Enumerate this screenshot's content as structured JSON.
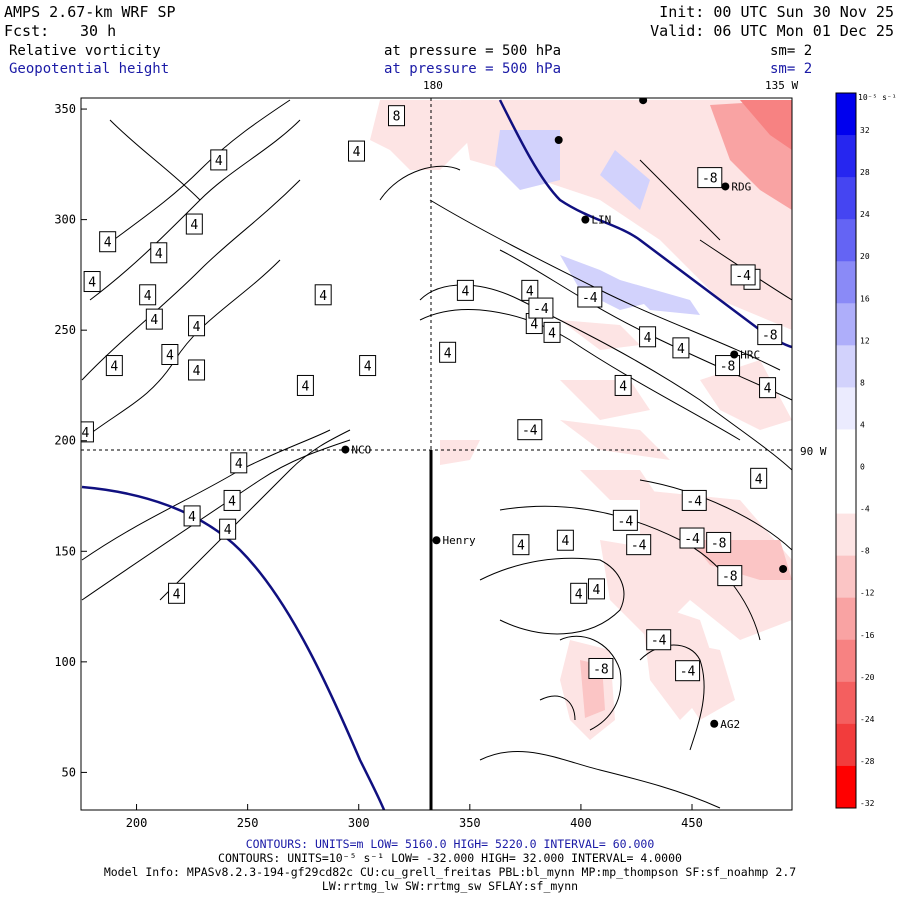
{
  "header": {
    "model": "AMPS 2.67-km WRF SP",
    "init": "Init: 00 UTC Sun 30 Nov 25",
    "fcst_label": "Fcst:",
    "fcst_value": "30 h",
    "valid": "Valid: 06 UTC Mon 01 Dec 25",
    "field1": "Relative vorticity",
    "field1_level": "at pressure =  500 hPa",
    "field1_sm": "sm= 2",
    "field2": "Geopotential height",
    "field2_level": "at pressure =  500 hPa",
    "field2_sm": "sm= 2"
  },
  "chart_data": {
    "type": "contour",
    "xlim": [
      175,
      495
    ],
    "ylim": [
      33,
      355
    ],
    "x_ticks": [
      200,
      250,
      300,
      350,
      400,
      450
    ],
    "y_ticks": [
      50,
      100,
      150,
      200,
      250,
      300,
      350
    ],
    "meridian_labels": {
      "top_180": "180",
      "top_135w": "135 W",
      "right_90w": "90 W"
    },
    "reference_lines": {
      "vertical_x": 334,
      "horizontal_y": 196
    },
    "stations": [
      {
        "name": "NCO",
        "x": 294,
        "y": 196
      },
      {
        "name": "Henry",
        "x": 335,
        "y": 155
      },
      {
        "name": "AG2",
        "x": 460,
        "y": 72
      },
      {
        "name": "HRC",
        "x": 469,
        "y": 239
      },
      {
        "name": "RDG",
        "x": 465,
        "y": 315
      },
      {
        "name": "LIN",
        "x": 402,
        "y": 300
      },
      {
        "name": "",
        "x": 390,
        "y": 336
      },
      {
        "name": "",
        "x": 428,
        "y": 354
      },
      {
        "name": "",
        "x": 491,
        "y": 142
      }
    ],
    "contour_labels": [
      {
        "text": "8",
        "x": 317,
        "y": 347
      },
      {
        "text": "4",
        "x": 299,
        "y": 331
      },
      {
        "text": "4",
        "x": 237,
        "y": 327
      },
      {
        "text": "4",
        "x": 226,
        "y": 298
      },
      {
        "text": "4",
        "x": 187,
        "y": 290
      },
      {
        "text": "4",
        "x": 210,
        "y": 285
      },
      {
        "text": "4",
        "x": 180,
        "y": 272
      },
      {
        "text": "4",
        "x": 205,
        "y": 266
      },
      {
        "text": "4",
        "x": 208,
        "y": 255
      },
      {
        "text": "4",
        "x": 190,
        "y": 234
      },
      {
        "text": "4",
        "x": 215,
        "y": 239
      },
      {
        "text": "4",
        "x": 227,
        "y": 252
      },
      {
        "text": "4",
        "x": 227,
        "y": 232
      },
      {
        "text": "4",
        "x": 276,
        "y": 225
      },
      {
        "text": "4",
        "x": 304,
        "y": 234
      },
      {
        "text": "4",
        "x": 177,
        "y": 204
      },
      {
        "text": "4",
        "x": 246,
        "y": 190
      },
      {
        "text": "4",
        "x": 243,
        "y": 173
      },
      {
        "text": "4",
        "x": 225,
        "y": 166
      },
      {
        "text": "4",
        "x": 241,
        "y": 160
      },
      {
        "text": "4",
        "x": 218,
        "y": 131
      },
      {
        "text": "4",
        "x": 284,
        "y": 266
      },
      {
        "text": "4",
        "x": 348,
        "y": 268
      },
      {
        "text": "4",
        "x": 377,
        "y": 268
      },
      {
        "text": "4",
        "x": 379,
        "y": 253
      },
      {
        "text": "4",
        "x": 387,
        "y": 249
      },
      {
        "text": "4",
        "x": 340,
        "y": 240
      },
      {
        "text": "4",
        "x": 430,
        "y": 247
      },
      {
        "text": "4",
        "x": 445,
        "y": 242
      },
      {
        "text": "4",
        "x": 419,
        "y": 225
      },
      {
        "text": "4",
        "x": 484,
        "y": 224
      },
      {
        "text": "4",
        "x": 480,
        "y": 183
      },
      {
        "text": "4",
        "x": 477,
        "y": 273
      },
      {
        "text": "4",
        "x": 373,
        "y": 153
      },
      {
        "text": "4",
        "x": 393,
        "y": 155
      },
      {
        "text": "4",
        "x": 399,
        "y": 131
      },
      {
        "text": "4",
        "x": 407,
        "y": 133
      },
      {
        "text": "-4",
        "x": 382,
        "y": 260
      },
      {
        "text": "-4",
        "x": 404,
        "y": 265
      },
      {
        "text": "-4",
        "x": 377,
        "y": 205
      },
      {
        "text": "-4",
        "x": 420,
        "y": 164
      },
      {
        "text": "-4",
        "x": 451,
        "y": 173
      },
      {
        "text": "-4",
        "x": 426,
        "y": 153
      },
      {
        "text": "-4",
        "x": 450,
        "y": 156
      },
      {
        "text": "-4",
        "x": 435,
        "y": 110
      },
      {
        "text": "-4",
        "x": 448,
        "y": 96
      },
      {
        "text": "-4",
        "x": 473,
        "y": 275
      },
      {
        "text": "-8",
        "x": 409,
        "y": 97
      },
      {
        "text": "-8",
        "x": 462,
        "y": 154
      },
      {
        "text": "-8",
        "x": 467,
        "y": 139
      },
      {
        "text": "-8",
        "x": 466,
        "y": 234
      },
      {
        "text": "-8",
        "x": 485,
        "y": 248
      },
      {
        "text": "-8",
        "x": 458,
        "y": 319
      }
    ],
    "colorbar": {
      "unit_label": "10⁻⁵ s⁻¹",
      "levels": [
        32,
        28,
        24,
        20,
        16,
        12,
        8,
        4,
        0,
        -4,
        -8,
        -12,
        -16,
        -20,
        -24,
        -28,
        -32
      ],
      "colors": [
        "#0000ee",
        "#2626f0",
        "#4545f2",
        "#6464f4",
        "#8a8af7",
        "#aeaefa",
        "#d2d2fc",
        "#ebebfe",
        "#ffffff",
        "#ffffff",
        "#fde4e4",
        "#fbc5c5",
        "#f9a3a3",
        "#f78282",
        "#f45f5f",
        "#f23c3c",
        "#ff0000"
      ]
    }
  },
  "footer": {
    "line1": "CONTOURS:  UNITS=m  LOW=  5160.0       HIGH=  5220.0       INTERVAL=  60.000",
    "line2": "CONTOURS:  UNITS=10⁻⁵ s⁻¹  LOW= -32.000       HIGH=  32.000       INTERVAL=  4.0000",
    "line3": "Model Info: MPASv8.2.3-194-gf29cd82c CU:cu_grell_freitas PBL:bl_mynn MP:mp_thompson SF:sf_noahmp 2.7",
    "line4": "LW:rrtmg_lw SW:rrtmg_sw SFLAY:sf_mynn"
  }
}
